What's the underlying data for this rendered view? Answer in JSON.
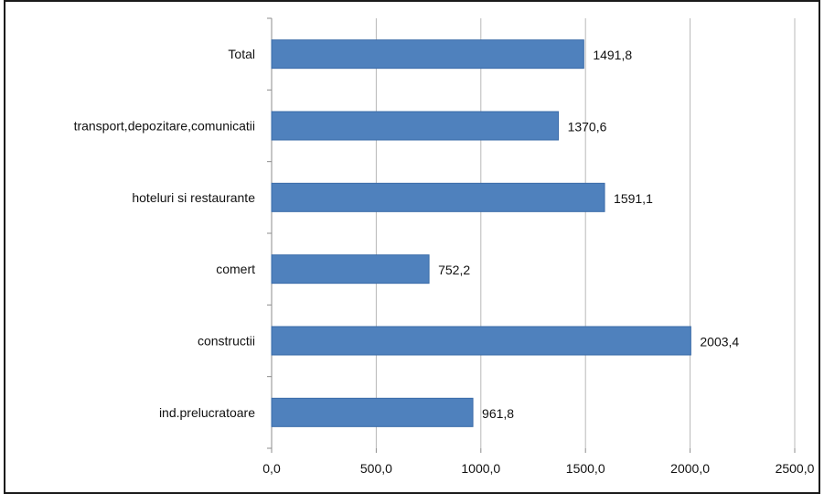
{
  "chart_data": {
    "type": "bar",
    "orientation": "horizontal",
    "categories": [
      "Total",
      "transport,depozitare,comunicatii",
      "hoteluri si restaurante",
      "comert",
      "constructii",
      "ind.prelucratoare"
    ],
    "values": [
      1491.8,
      1370.6,
      1591.1,
      752.2,
      2003.4,
      961.8
    ],
    "data_labels": [
      "1491,8",
      "1370,6",
      "1591,1",
      "752,2",
      "2003,4",
      "961,8"
    ],
    "x_ticks": [
      0,
      500,
      1000,
      1500,
      2000,
      2500
    ],
    "x_tick_labels": [
      "0,0",
      "500,0",
      "1000,0",
      "1500,0",
      "2000,0",
      "2500,0"
    ],
    "xlim": [
      0,
      2500
    ],
    "grid": "vertical",
    "legend": "none",
    "bar_color": "#4F81BD",
    "bar_edge_color": "#3A6BA8",
    "grid_color": "#B8B8B8",
    "title": "",
    "xlabel": "",
    "ylabel": ""
  }
}
